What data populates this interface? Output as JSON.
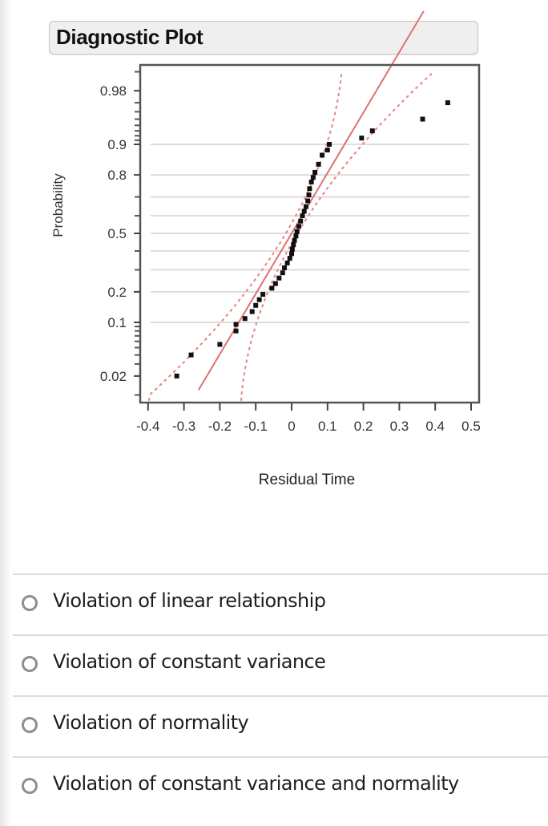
{
  "header": {
    "title": "Diagnostic Plot"
  },
  "chart_data": {
    "type": "scatter",
    "subtype": "normal probability plot",
    "title": "Diagnostic Plot",
    "xlabel": "Residual Time",
    "ylabel": "Probability",
    "xlim": [
      -0.43,
      0.52
    ],
    "x_ticks": [
      "-0.4",
      "-0.3",
      "-0.2",
      "-0.1",
      "0",
      "0.1",
      "0.2",
      "0.3",
      "0.4",
      "0.5"
    ],
    "y_ticks": [
      "0.02",
      "0.1",
      "0.2",
      "0.5",
      "0.8",
      "0.9",
      "0.98"
    ],
    "y_gridlines": [
      0.1,
      0.2,
      0.3,
      0.4,
      0.5,
      0.6,
      0.7,
      0.8,
      0.9
    ],
    "grid": true,
    "series": [
      {
        "name": "Residuals",
        "style": "black square markers",
        "points": [
          {
            "x": -0.32,
            "p": 0.02
          },
          {
            "x": -0.28,
            "p": 0.04
          },
          {
            "x": -0.2,
            "p": 0.055
          },
          {
            "x": -0.155,
            "p": 0.08
          },
          {
            "x": -0.155,
            "p": 0.095
          },
          {
            "x": -0.13,
            "p": 0.11
          },
          {
            "x": -0.11,
            "p": 0.13
          },
          {
            "x": -0.1,
            "p": 0.15
          },
          {
            "x": -0.09,
            "p": 0.17
          },
          {
            "x": -0.08,
            "p": 0.19
          },
          {
            "x": -0.055,
            "p": 0.215
          },
          {
            "x": -0.045,
            "p": 0.235
          },
          {
            "x": -0.035,
            "p": 0.26
          },
          {
            "x": -0.025,
            "p": 0.285
          },
          {
            "x": -0.02,
            "p": 0.31
          },
          {
            "x": -0.012,
            "p": 0.335
          },
          {
            "x": -0.005,
            "p": 0.36
          },
          {
            "x": 0.0,
            "p": 0.385
          },
          {
            "x": 0.002,
            "p": 0.41
          },
          {
            "x": 0.005,
            "p": 0.435
          },
          {
            "x": 0.008,
            "p": 0.46
          },
          {
            "x": 0.012,
            "p": 0.485
          },
          {
            "x": 0.015,
            "p": 0.51
          },
          {
            "x": 0.02,
            "p": 0.54
          },
          {
            "x": 0.025,
            "p": 0.57
          },
          {
            "x": 0.03,
            "p": 0.6
          },
          {
            "x": 0.035,
            "p": 0.625
          },
          {
            "x": 0.04,
            "p": 0.65
          },
          {
            "x": 0.045,
            "p": 0.68
          },
          {
            "x": 0.048,
            "p": 0.71
          },
          {
            "x": 0.05,
            "p": 0.74
          },
          {
            "x": 0.055,
            "p": 0.77
          },
          {
            "x": 0.06,
            "p": 0.79
          },
          {
            "x": 0.065,
            "p": 0.81
          },
          {
            "x": 0.075,
            "p": 0.84
          },
          {
            "x": 0.085,
            "p": 0.87
          },
          {
            "x": 0.1,
            "p": 0.885
          },
          {
            "x": 0.105,
            "p": 0.9
          },
          {
            "x": 0.195,
            "p": 0.915
          },
          {
            "x": 0.225,
            "p": 0.93
          },
          {
            "x": 0.365,
            "p": 0.95
          },
          {
            "x": 0.435,
            "p": 0.97
          }
        ]
      },
      {
        "name": "Normal fit line",
        "style": "solid red",
        "color": "#e07070"
      },
      {
        "name": "Confidence bounds",
        "style": "dotted red",
        "color": "#e88a8a"
      }
    ]
  },
  "question": {
    "options": [
      {
        "label": "Violation of linear relationship",
        "selected": false
      },
      {
        "label": "Violation of constant variance",
        "selected": false
      },
      {
        "label": "Violation of normality",
        "selected": false
      },
      {
        "label": "Violation of constant variance and normality",
        "selected": false
      }
    ]
  }
}
